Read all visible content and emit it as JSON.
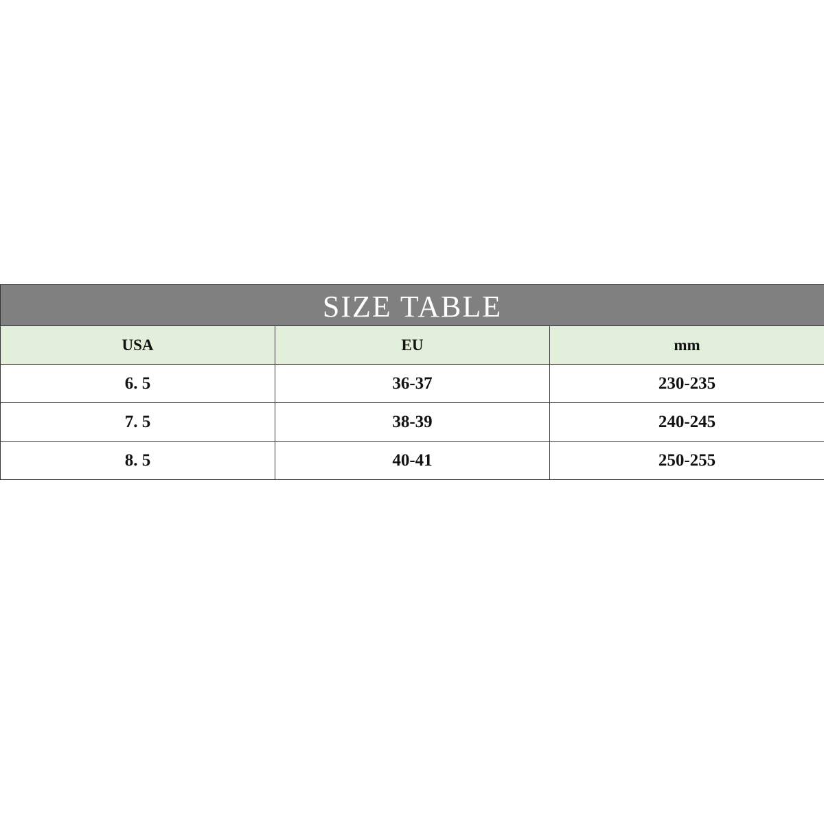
{
  "title": "SIZE TABLE",
  "columns": [
    "USA",
    "EU",
    "mm"
  ],
  "rows": [
    [
      "6. 5",
      "36-37",
      "230-235"
    ],
    [
      "7. 5",
      "38-39",
      "240-245"
    ],
    [
      "8. 5",
      "40-41",
      "250-255"
    ]
  ],
  "colors": {
    "title_bg": "#808080",
    "header_bg": "#e2efda"
  }
}
